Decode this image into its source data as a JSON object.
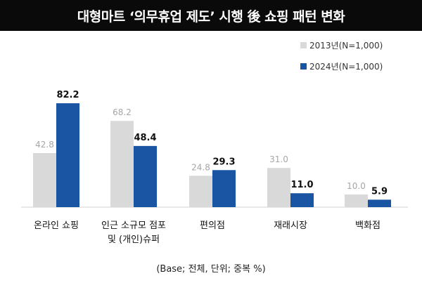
{
  "chart_data": {
    "type": "bar",
    "title": "대형마트 ‘의무휴업 제도’ 시행 後 쇼핑 패턴 변화",
    "categories": [
      [
        "온라인 쇼핑"
      ],
      [
        "인근 소규모 점포",
        "및 (개인)슈퍼"
      ],
      [
        "편의점"
      ],
      [
        "재래시장"
      ],
      [
        "백화점"
      ]
    ],
    "series": [
      {
        "name": "2013년(N=1,000)",
        "color": "#d9d9d9",
        "values": [
          42.8,
          68.2,
          24.8,
          31.0,
          10.0
        ]
      },
      {
        "name": "2024년(N=1,000)",
        "color": "#1a55a3",
        "values": [
          82.2,
          48.4,
          29.3,
          11.0,
          5.9
        ]
      }
    ],
    "ylim": [
      0,
      100
    ],
    "grid": false,
    "legend": "top-right",
    "footnote": "(Base; 전체, 단위; 중복 %)"
  }
}
